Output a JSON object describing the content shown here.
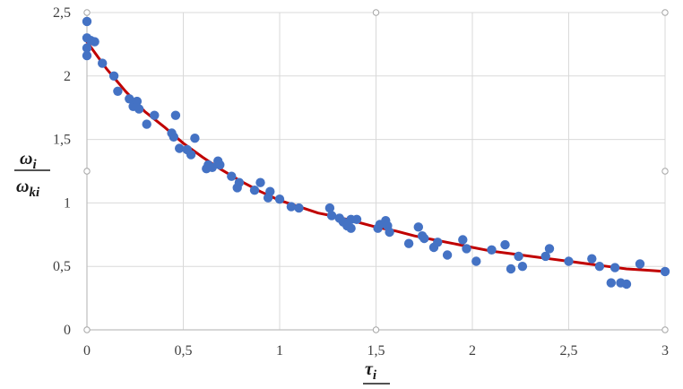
{
  "chart_data": {
    "type": "scatter",
    "title": "",
    "xlabel": {
      "main": "τ",
      "sub": "i"
    },
    "ylabel": {
      "numerator": {
        "main": "ω",
        "sub": "i"
      },
      "denominator": {
        "main": "ω",
        "sub": "ki"
      }
    },
    "xlim": [
      0,
      3
    ],
    "ylim": [
      0,
      2.5
    ],
    "x_ticks": [
      0,
      0.5,
      1,
      1.5,
      2,
      2.5,
      3
    ],
    "x_tick_labels": [
      "0",
      "0,5",
      "1",
      "1,5",
      "2",
      "2,5",
      "3"
    ],
    "y_ticks": [
      0,
      0.5,
      1,
      1.5,
      2,
      2.5
    ],
    "y_tick_labels": [
      "0",
      "0,5",
      "1",
      "1,5",
      "2",
      "2,5"
    ],
    "grid": true,
    "colors": {
      "points": "#4472C4",
      "trend": "#C00000",
      "grid": "#d9d9d9"
    },
    "series": [
      {
        "kind": "points",
        "x": [
          0,
          0,
          0,
          0,
          0.02,
          0.04,
          0.08,
          0.14,
          0.16,
          0.22,
          0.24,
          0.26,
          0.27,
          0.31,
          0.35,
          0.44,
          0.45,
          0.46,
          0.48,
          0.52,
          0.54,
          0.56,
          0.62,
          0.63,
          0.65,
          0.68,
          0.69,
          0.75,
          0.78,
          0.79,
          0.87,
          0.9,
          0.94,
          0.95,
          1.0,
          1.06,
          1.1,
          1.26,
          1.27,
          1.31,
          1.33,
          1.35,
          1.37,
          1.37,
          1.4,
          1.51,
          1.52,
          1.55,
          1.56,
          1.57,
          1.67,
          1.72,
          1.74,
          1.75,
          1.8,
          1.82,
          1.87,
          1.95,
          1.97,
          2.02,
          2.1,
          2.17,
          2.2,
          2.24,
          2.26,
          2.38,
          2.4,
          2.5,
          2.62,
          2.66,
          2.72,
          2.74,
          2.77,
          2.8,
          2.87,
          3.0
        ],
        "y": [
          2.43,
          2.3,
          2.22,
          2.16,
          2.28,
          2.27,
          2.1,
          2.0,
          1.88,
          1.82,
          1.76,
          1.8,
          1.74,
          1.62,
          1.69,
          1.55,
          1.52,
          1.69,
          1.43,
          1.42,
          1.38,
          1.51,
          1.27,
          1.3,
          1.28,
          1.33,
          1.3,
          1.21,
          1.12,
          1.16,
          1.1,
          1.16,
          1.04,
          1.09,
          1.03,
          0.97,
          0.96,
          0.96,
          0.9,
          0.88,
          0.85,
          0.82,
          0.87,
          0.8,
          0.87,
          0.8,
          0.83,
          0.86,
          0.82,
          0.77,
          0.68,
          0.81,
          0.74,
          0.72,
          0.65,
          0.69,
          0.59,
          0.71,
          0.64,
          0.54,
          0.63,
          0.67,
          0.48,
          0.58,
          0.5,
          0.58,
          0.64,
          0.54,
          0.56,
          0.5,
          0.37,
          0.49,
          0.37,
          0.36,
          0.52,
          0.46
        ]
      },
      {
        "kind": "trend",
        "x": [
          0,
          0.1,
          0.2,
          0.3,
          0.4,
          0.5,
          0.6,
          0.7,
          0.8,
          0.9,
          1.0,
          1.1,
          1.2,
          1.3,
          1.4,
          1.5,
          1.6,
          1.7,
          1.8,
          1.9,
          2.0,
          2.1,
          2.2,
          2.3,
          2.4,
          2.5,
          2.6,
          2.7,
          2.8,
          2.9,
          3.0
        ],
        "y": [
          2.27,
          2.06,
          1.88,
          1.72,
          1.6,
          1.47,
          1.36,
          1.26,
          1.17,
          1.09,
          1.02,
          0.97,
          0.92,
          0.89,
          0.85,
          0.81,
          0.78,
          0.74,
          0.71,
          0.68,
          0.65,
          0.62,
          0.6,
          0.58,
          0.56,
          0.54,
          0.52,
          0.5,
          0.48,
          0.47,
          0.46
        ]
      }
    ]
  }
}
